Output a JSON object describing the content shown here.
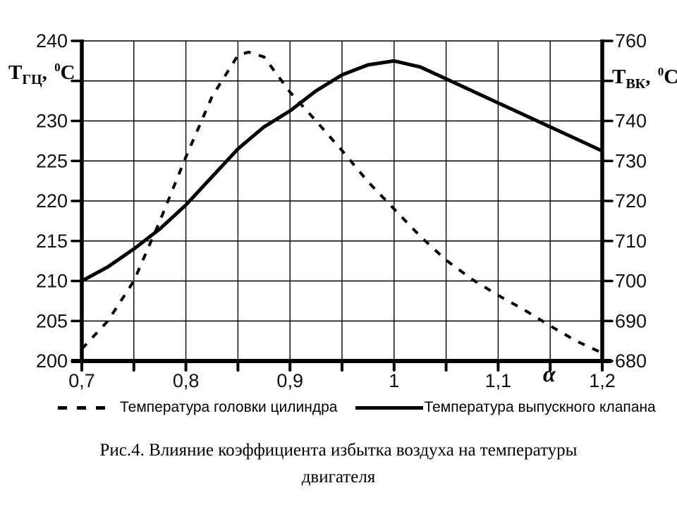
{
  "chart_data": {
    "type": "line",
    "title": "Рис.4. Влияние коэффициента избытка воздуха на температуры двигателя",
    "grid": true,
    "legend_position": "bottom",
    "x_axis": {
      "title": "α",
      "min": 0.7,
      "max": 1.2,
      "tick_step": 0.05,
      "grid_step": 0.05,
      "tick_labels": [
        {
          "v": 0.7,
          "label": "0,7"
        },
        {
          "v": 0.8,
          "label": "0,8"
        },
        {
          "v": 0.9,
          "label": "0,9"
        },
        {
          "v": 1,
          "label": "1"
        },
        {
          "v": 1.1,
          "label": "1,1"
        },
        {
          "v": 1.2,
          "label": "1,2"
        }
      ]
    },
    "y_left": {
      "label_parts": {
        "t": "Т",
        "sub": "ГЦ",
        "sep": ", ",
        "deg": "0",
        "unit": "С"
      },
      "min": 200,
      "max": 240,
      "step": 5,
      "tick_values": [
        240,
        235,
        230,
        225,
        220,
        215,
        210,
        205,
        200
      ],
      "tick_labels": [
        "240",
        "",
        "230",
        "225",
        "220",
        "215",
        "210",
        "205",
        "200"
      ]
    },
    "y_right": {
      "label_parts": {
        "t": "Т",
        "sub": "ВК",
        "sep": ", ",
        "deg": "0",
        "unit": "С"
      },
      "min": 680,
      "max": 760,
      "step": 10,
      "tick_values": [
        760,
        750,
        740,
        730,
        720,
        710,
        700,
        690,
        680
      ],
      "tick_labels": [
        "760",
        "",
        "740",
        "730",
        "720",
        "710",
        "700",
        "690",
        "680"
      ]
    },
    "series": [
      {
        "name": "Температура головки цилиндра",
        "axis": "left",
        "style": "dashed",
        "points": [
          [
            0.7,
            201.5
          ],
          [
            0.725,
            205
          ],
          [
            0.75,
            210
          ],
          [
            0.775,
            217.5
          ],
          [
            0.8,
            225.5
          ],
          [
            0.825,
            233
          ],
          [
            0.85,
            238.2
          ],
          [
            0.86,
            238.6
          ],
          [
            0.875,
            238
          ],
          [
            0.9,
            233.6
          ],
          [
            0.925,
            230
          ],
          [
            0.95,
            226.3
          ],
          [
            0.975,
            222.4
          ],
          [
            1,
            219
          ],
          [
            1.025,
            215.6
          ],
          [
            1.05,
            212.6
          ],
          [
            1.075,
            210.2
          ],
          [
            1.1,
            208.2
          ],
          [
            1.125,
            206.4
          ],
          [
            1.15,
            204.4
          ],
          [
            1.175,
            202.5
          ],
          [
            1.2,
            201
          ]
        ]
      },
      {
        "name": "Температура выпускного клапана",
        "axis": "right",
        "style": "solid",
        "points": [
          [
            0.7,
            700
          ],
          [
            0.725,
            703.5
          ],
          [
            0.75,
            708
          ],
          [
            0.775,
            713
          ],
          [
            0.8,
            719
          ],
          [
            0.825,
            726
          ],
          [
            0.85,
            733
          ],
          [
            0.875,
            738.5
          ],
          [
            0.9,
            742.5
          ],
          [
            0.925,
            747.5
          ],
          [
            0.95,
            751.5
          ],
          [
            0.975,
            754
          ],
          [
            1,
            755
          ],
          [
            1.025,
            753.5
          ],
          [
            1.05,
            750.5
          ],
          [
            1.075,
            747.5
          ],
          [
            1.1,
            744.5
          ],
          [
            1.125,
            741.5
          ],
          [
            1.15,
            738.5
          ],
          [
            1.175,
            735.5
          ],
          [
            1.2,
            732.5
          ]
        ]
      }
    ]
  },
  "caption": {
    "line1": "Рис.4. Влияние коэффициента избытка воздуха на температуры",
    "line2": "двигателя"
  }
}
